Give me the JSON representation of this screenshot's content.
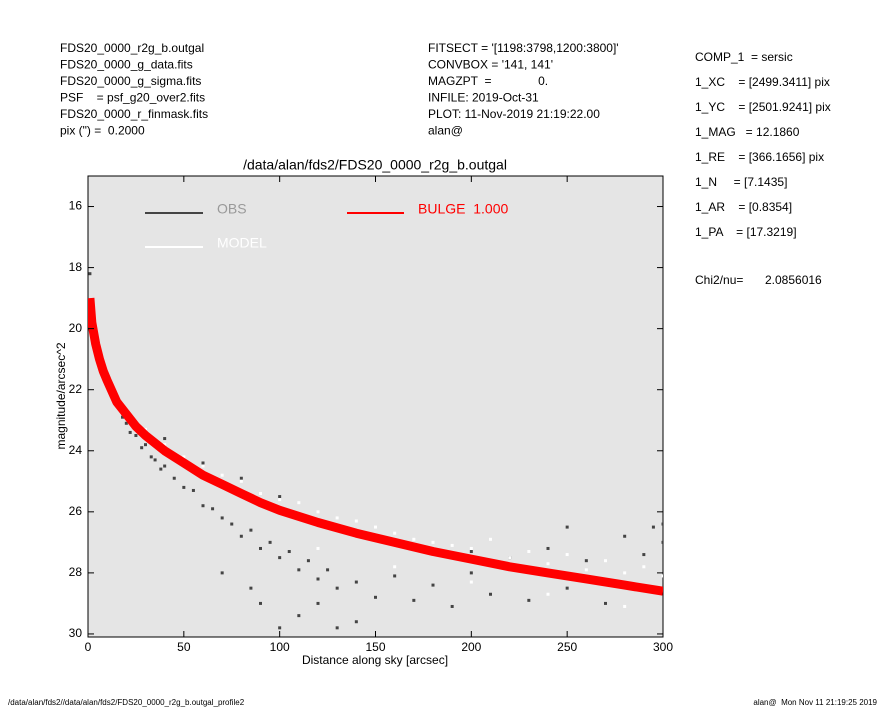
{
  "header_left": [
    "FDS20_0000_r2g_b.outgal",
    "FDS20_0000_g_data.fits",
    "FDS20_0000_g_sigma.fits",
    "PSF    = psf_g20_over2.fits",
    "FDS20_0000_r_finmask.fits",
    "pix (\") =  0.2000"
  ],
  "header_mid": [
    "FITSECT = '[1198:3798,1200:3800]'",
    "CONVBOX = '141, 141'",
    "MAGZPT  =              0.",
    "INFILE: 2019-Oct-31",
    "PLOT: 11-Nov-2019 21:19:22.00",
    "alan@"
  ],
  "params": [
    "COMP_1  = sersic",
    "1_XC    = [2499.3411] pix",
    "1_YC    = [2501.9241] pix",
    "1_MAG   = 12.1860",
    "1_RE    = [366.1656] pix",
    "1_N     = [7.1435]",
    "1_AR    = [0.8354]",
    "1_PA    = [17.3219]"
  ],
  "chi2": {
    "label": "Chi2/nu=",
    "value": "2.0856016"
  },
  "footer": {
    "left": "/data/alan/fds2//data/alan/fds2/FDS20_0000_r2g_b.outgal_profile2",
    "right": "alan@  Mon Nov 11 21:19:25 2019"
  },
  "chart_data": {
    "type": "scatter",
    "title": "/data/alan/fds2/FDS20_0000_r2g_b.outgal",
    "xlabel": "Distance along sky [arcsec]",
    "ylabel": "magnitude/arcsec^2",
    "xlim": [
      0,
      300
    ],
    "xticks": [
      0,
      50,
      100,
      150,
      200,
      250,
      300
    ],
    "ylim": [
      30.1,
      15
    ],
    "yticks": [
      16,
      18,
      20,
      22,
      24,
      26,
      28,
      30
    ],
    "plot_background": "#e5e5e5",
    "series": [
      {
        "name": "OBS",
        "color": "#444444",
        "mode": "points",
        "x": [
          1,
          3,
          5,
          8,
          10,
          12,
          15,
          18,
          20,
          22,
          25,
          28,
          30,
          33,
          35,
          38,
          40,
          45,
          50,
          55,
          60,
          65,
          70,
          75,
          80,
          85,
          90,
          95,
          100,
          105,
          110,
          115,
          120,
          125,
          130,
          140,
          150,
          160,
          170,
          180,
          190,
          200,
          210,
          220,
          230,
          240,
          250,
          260,
          270,
          280,
          290,
          295,
          300,
          40,
          60,
          80,
          100,
          150,
          200,
          250,
          300,
          70,
          90,
          110,
          130,
          85,
          100,
          120,
          140
        ],
        "values": [
          18.2,
          19.6,
          20.4,
          21.2,
          21.6,
          22.1,
          22.5,
          22.9,
          23.1,
          23.4,
          23.5,
          23.9,
          23.8,
          24.2,
          24.3,
          24.6,
          24.5,
          24.9,
          25.2,
          25.3,
          25.8,
          25.9,
          26.2,
          26.4,
          26.8,
          26.6,
          27.2,
          27.0,
          27.5,
          27.3,
          27.9,
          27.6,
          28.2,
          27.9,
          28.5,
          28.3,
          28.8,
          28.1,
          28.9,
          28.4,
          29.1,
          28.0,
          28.7,
          27.5,
          28.9,
          27.2,
          28.5,
          27.6,
          29.0,
          26.8,
          27.4,
          26.5,
          27.0,
          23.6,
          24.4,
          24.9,
          25.5,
          26.8,
          27.3,
          26.5,
          26.4,
          28.0,
          29.0,
          29.4,
          29.8,
          28.5,
          29.8,
          29.0,
          29.6
        ]
      },
      {
        "name": "MODEL",
        "color": "#ffffff",
        "mode": "points",
        "x": [
          30,
          40,
          50,
          60,
          70,
          80,
          90,
          100,
          110,
          120,
          130,
          140,
          150,
          160,
          170,
          180,
          190,
          200,
          210,
          220,
          230,
          240,
          250,
          260,
          270,
          280,
          290,
          300,
          120,
          160,
          200,
          240,
          280
        ],
        "values": [
          23.3,
          23.8,
          24.2,
          24.5,
          24.8,
          25.0,
          25.4,
          25.6,
          25.7,
          26.0,
          26.2,
          26.3,
          26.5,
          26.7,
          26.9,
          27.0,
          27.1,
          27.2,
          26.9,
          27.5,
          27.3,
          27.7,
          27.4,
          27.9,
          27.6,
          28.0,
          27.8,
          28.1,
          27.2,
          27.8,
          28.3,
          28.7,
          29.1
        ]
      },
      {
        "name": "BULGE  1.000",
        "color": "#ff0000",
        "mode": "line",
        "x": [
          1,
          2,
          4,
          6,
          8,
          10,
          15,
          20,
          25,
          30,
          40,
          50,
          60,
          70,
          80,
          90,
          100,
          120,
          140,
          160,
          180,
          200,
          220,
          240,
          260,
          280,
          300
        ],
        "values": [
          19.0,
          19.8,
          20.5,
          21.0,
          21.4,
          21.7,
          22.4,
          22.8,
          23.2,
          23.5,
          24.0,
          24.4,
          24.8,
          25.1,
          25.4,
          25.7,
          25.95,
          26.35,
          26.7,
          27.0,
          27.3,
          27.55,
          27.8,
          28.0,
          28.2,
          28.4,
          28.6
        ]
      }
    ]
  }
}
